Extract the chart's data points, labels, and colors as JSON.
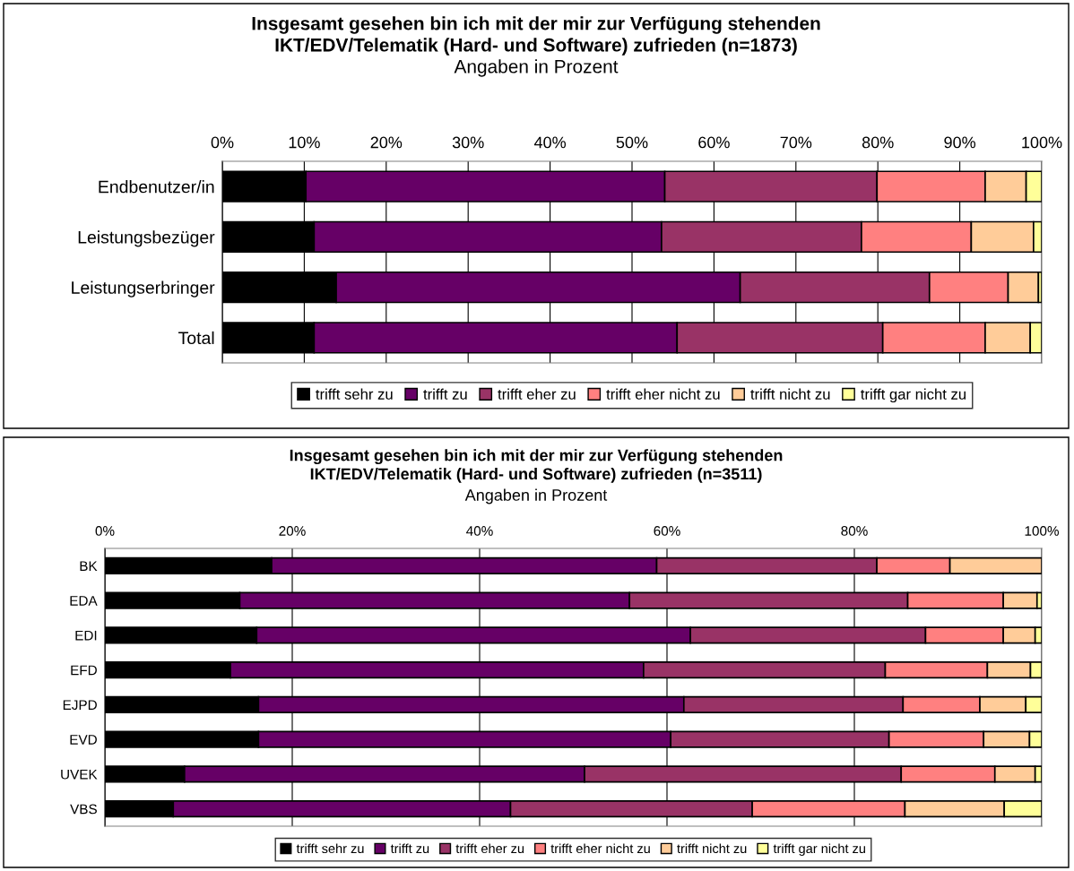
{
  "chart_data": [
    {
      "type": "bar",
      "orientation": "horizontal",
      "stacked": true,
      "title": "Insgesamt gesehen bin ich mit der mir zur Verfügung stehenden\nIKT/EDV/Telematik (Hard- und Software) zufrieden (n=1873)",
      "subtitle": "Angaben in Prozent",
      "categories": [
        "Endbenutzer/in",
        "Leistungsbezüger",
        "Leistungserbringer",
        "Total"
      ],
      "series": [
        {
          "name": "trifft sehr zu",
          "color": "#000000",
          "values": [
            10.2,
            11.2,
            13.9,
            11.2
          ]
        },
        {
          "name": "trifft zu",
          "color": "#660066",
          "values": [
            43.8,
            42.4,
            49.3,
            44.3
          ]
        },
        {
          "name": "trifft eher zu",
          "color": "#993366",
          "values": [
            25.9,
            24.4,
            23.1,
            25.1
          ]
        },
        {
          "name": "trifft eher nicht zu",
          "color": "#ff8080",
          "values": [
            13.2,
            13.4,
            9.6,
            12.5
          ]
        },
        {
          "name": "trifft nicht zu",
          "color": "#ffcc99",
          "values": [
            5.0,
            7.6,
            3.7,
            5.5
          ]
        },
        {
          "name": "trifft gar nicht zu",
          "color": "#ffff99",
          "values": [
            1.9,
            1.0,
            0.4,
            1.4
          ]
        }
      ],
      "xlim": [
        0,
        100
      ],
      "xticks": [
        {
          "value": 0,
          "label": "0%"
        },
        {
          "value": 10,
          "label": "10%"
        },
        {
          "value": 20,
          "label": "20%"
        },
        {
          "value": 30,
          "label": "30%"
        },
        {
          "value": 40,
          "label": "40%"
        },
        {
          "value": 50,
          "label": "50%"
        },
        {
          "value": 60,
          "label": "60%"
        },
        {
          "value": 70,
          "label": "70%"
        },
        {
          "value": 80,
          "label": "80%"
        },
        {
          "value": 90,
          "label": "90%"
        },
        {
          "value": 100,
          "label": "100%"
        }
      ],
      "grid": "x",
      "legend": "bottom"
    },
    {
      "type": "bar",
      "orientation": "horizontal",
      "stacked": true,
      "title": "Insgesamt gesehen bin ich mit der mir zur Verfügung stehenden\nIKT/EDV/Telematik (Hard- und Software) zufrieden (n=3511)",
      "subtitle": "Angaben in Prozent",
      "categories": [
        "BK",
        "EDA",
        "EDI",
        "EFD",
        "EJPD",
        "EVD",
        "UVEK",
        "VBS"
      ],
      "series": [
        {
          "name": "trifft sehr zu",
          "color": "#000000",
          "values": [
            17.8,
            14.4,
            16.2,
            13.4,
            16.4,
            16.4,
            8.5,
            7.3
          ]
        },
        {
          "name": "trifft zu",
          "color": "#660066",
          "values": [
            41.1,
            41.6,
            46.3,
            44.1,
            45.4,
            44.0,
            42.7,
            36.0
          ]
        },
        {
          "name": "trifft eher zu",
          "color": "#993366",
          "values": [
            23.5,
            29.7,
            25.1,
            25.8,
            23.4,
            23.3,
            33.8,
            25.8
          ]
        },
        {
          "name": "trifft eher nicht zu",
          "color": "#ff8080",
          "values": [
            7.8,
            10.2,
            8.3,
            10.9,
            8.2,
            10.1,
            10.0,
            16.3
          ]
        },
        {
          "name": "trifft nicht zu",
          "color": "#ffcc99",
          "values": [
            9.8,
            3.6,
            3.4,
            4.6,
            4.9,
            4.9,
            4.3,
            10.6
          ]
        },
        {
          "name": "trifft gar nicht zu",
          "color": "#ffff99",
          "values": [
            null,
            0.5,
            0.7,
            1.2,
            1.7,
            1.3,
            0.7,
            4.0
          ]
        }
      ],
      "xlim": [
        0,
        100
      ],
      "xticks": [
        {
          "value": 0,
          "label": "0%"
        },
        {
          "value": 20,
          "label": "20%"
        },
        {
          "value": 40,
          "label": "40%"
        },
        {
          "value": 60,
          "label": "60%"
        },
        {
          "value": 80,
          "label": "80%"
        },
        {
          "value": 100,
          "label": "100%"
        }
      ],
      "grid": "x",
      "legend": "bottom"
    }
  ]
}
